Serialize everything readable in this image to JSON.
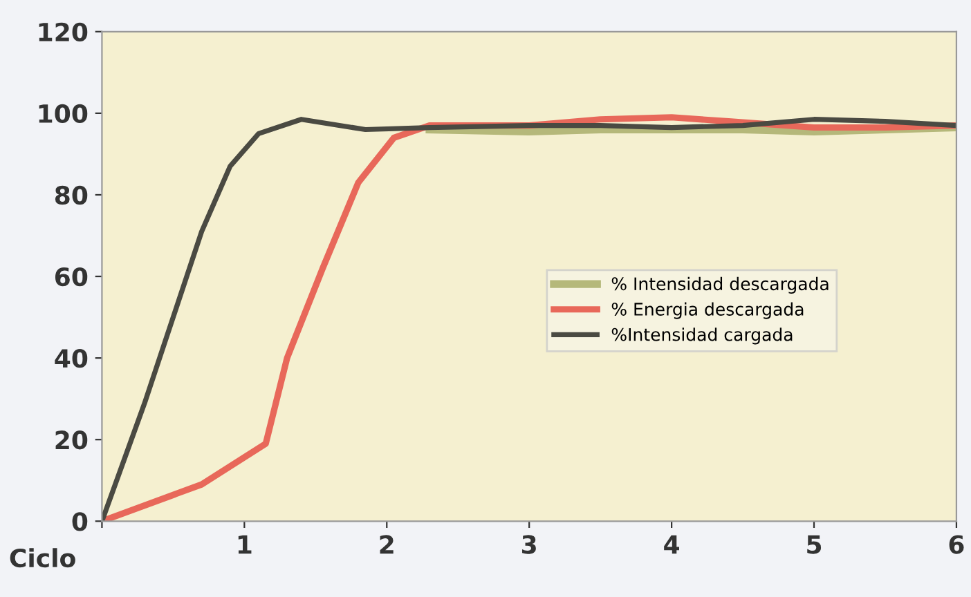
{
  "chart_data": {
    "type": "line",
    "xlabel": "Ciclo",
    "xlim": [
      0,
      6
    ],
    "xticks": [
      {
        "value": 0,
        "label": null
      },
      1,
      2,
      3,
      4,
      5,
      6
    ],
    "ylim": [
      0,
      120
    ],
    "yticks": [
      0,
      20,
      40,
      60,
      80,
      100,
      120
    ],
    "grid": false,
    "legend": "right",
    "series": [
      {
        "name": "% Intensidad descargada",
        "color": "#b5b87a",
        "x": [
          2.3,
          3,
          3.5,
          4,
          4.5,
          5,
          5.5,
          6
        ],
        "values": [
          96,
          95.5,
          96,
          96,
          96,
          95.5,
          96,
          96.5
        ]
      },
      {
        "name": "% Energia descargada",
        "color": "#e8685a",
        "x": [
          0,
          0.7,
          1.15,
          1.3,
          1.55,
          1.8,
          2.05,
          2.3,
          3,
          3.5,
          4,
          4.4,
          5,
          5.5,
          6
        ],
        "values": [
          0,
          9,
          19,
          40,
          62,
          83,
          94,
          97,
          97,
          98.5,
          99,
          98,
          96.5,
          96.5,
          97
        ]
      },
      {
        "name": "%Intensidad cargada",
        "color": "#4a4a42",
        "x": [
          0,
          0.3,
          0.5,
          0.7,
          0.9,
          1.1,
          1.4,
          1.85,
          2.3,
          3,
          3.5,
          4,
          4.5,
          5,
          5.5,
          6
        ],
        "values": [
          0,
          29,
          50,
          71,
          87,
          95,
          98.5,
          96,
          96.5,
          97,
          97,
          96.5,
          97,
          98.5,
          98,
          97
        ]
      }
    ]
  }
}
